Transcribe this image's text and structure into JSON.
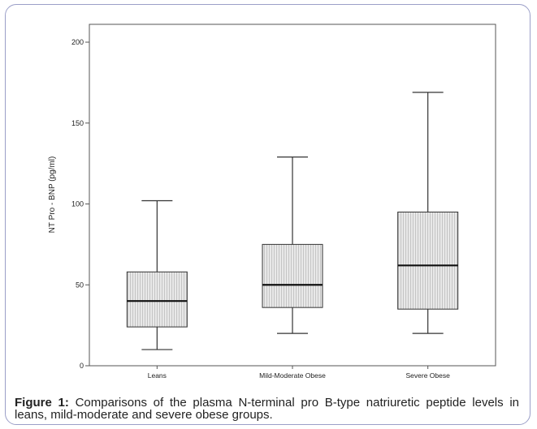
{
  "figure": {
    "caption_label": "Figure 1:",
    "caption_text": "Comparisons of the plasma N-terminal pro B-type natriuretic peptide levels in leans, mild-moderate and severe obese groups."
  },
  "chart_data": {
    "type": "boxplot",
    "ylabel": "NT Pro - BNP (pg/ml)",
    "xlabel": "",
    "ylim": [
      0,
      200
    ],
    "yticks": [
      0,
      50,
      100,
      150,
      200
    ],
    "categories": [
      "Leans",
      "Mild-Moderate Obese",
      "Severe Obese"
    ],
    "boxes": [
      {
        "category": "Leans",
        "min": 10,
        "q1": 24,
        "median": 40,
        "q3": 58,
        "max": 102
      },
      {
        "category": "Mild-Moderate Obese",
        "min": 20,
        "q1": 36,
        "median": 50,
        "q3": 75,
        "max": 129
      },
      {
        "category": "Severe Obese",
        "min": 20,
        "q1": 35,
        "median": 62,
        "q3": 95,
        "max": 169
      }
    ],
    "box_fill": "#e8e8e8",
    "line_color": "#333333"
  }
}
